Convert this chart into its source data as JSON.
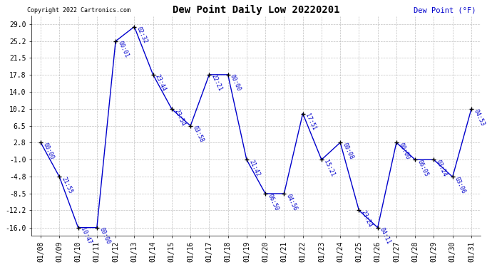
{
  "title": "Dew Point Daily Low 20220201",
  "ylabel": "Dew Point (°F)",
  "copyright": "Copyright 2022 Cartronics.com",
  "line_color": "#0000cc",
  "marker_color": "#000000",
  "background_color": "#ffffff",
  "grid_color": "#b0b0b0",
  "ylim": [
    -17.8,
    30.8
  ],
  "yticks": [
    -16.0,
    -12.2,
    -8.5,
    -4.8,
    -1.0,
    2.8,
    6.5,
    10.2,
    14.0,
    17.8,
    21.5,
    25.2,
    29.0
  ],
  "dates": [
    "01/08",
    "01/09",
    "01/10",
    "01/11",
    "01/12",
    "01/13",
    "01/14",
    "01/15",
    "01/16",
    "01/17",
    "01/18",
    "01/19",
    "01/20",
    "01/21",
    "01/22",
    "01/23",
    "01/24",
    "01/25",
    "01/26",
    "01/27",
    "01/28",
    "01/29",
    "01/30",
    "01/31"
  ],
  "values": [
    2.8,
    -4.8,
    -16.0,
    -16.0,
    25.2,
    28.4,
    17.8,
    10.2,
    6.5,
    17.8,
    17.8,
    -1.0,
    -8.5,
    -8.5,
    9.2,
    -1.0,
    2.8,
    -12.2,
    -16.0,
    2.8,
    -1.0,
    -1.0,
    -4.8,
    10.2
  ],
  "labels": [
    "00:00",
    "21:55",
    "10:47",
    "00:00",
    "00:01",
    "02:32",
    "23:44",
    "23:54",
    "03:58",
    "22:21",
    "00:00",
    "21:42",
    "06:50",
    "04:56",
    "17:51",
    "15:21",
    "00:08",
    "23:24",
    "04:11",
    "00:00",
    "06:05",
    "03:24",
    "03:06",
    "04:53"
  ],
  "label_rotation": -65,
  "figsize": [
    6.9,
    3.75
  ],
  "dpi": 100
}
